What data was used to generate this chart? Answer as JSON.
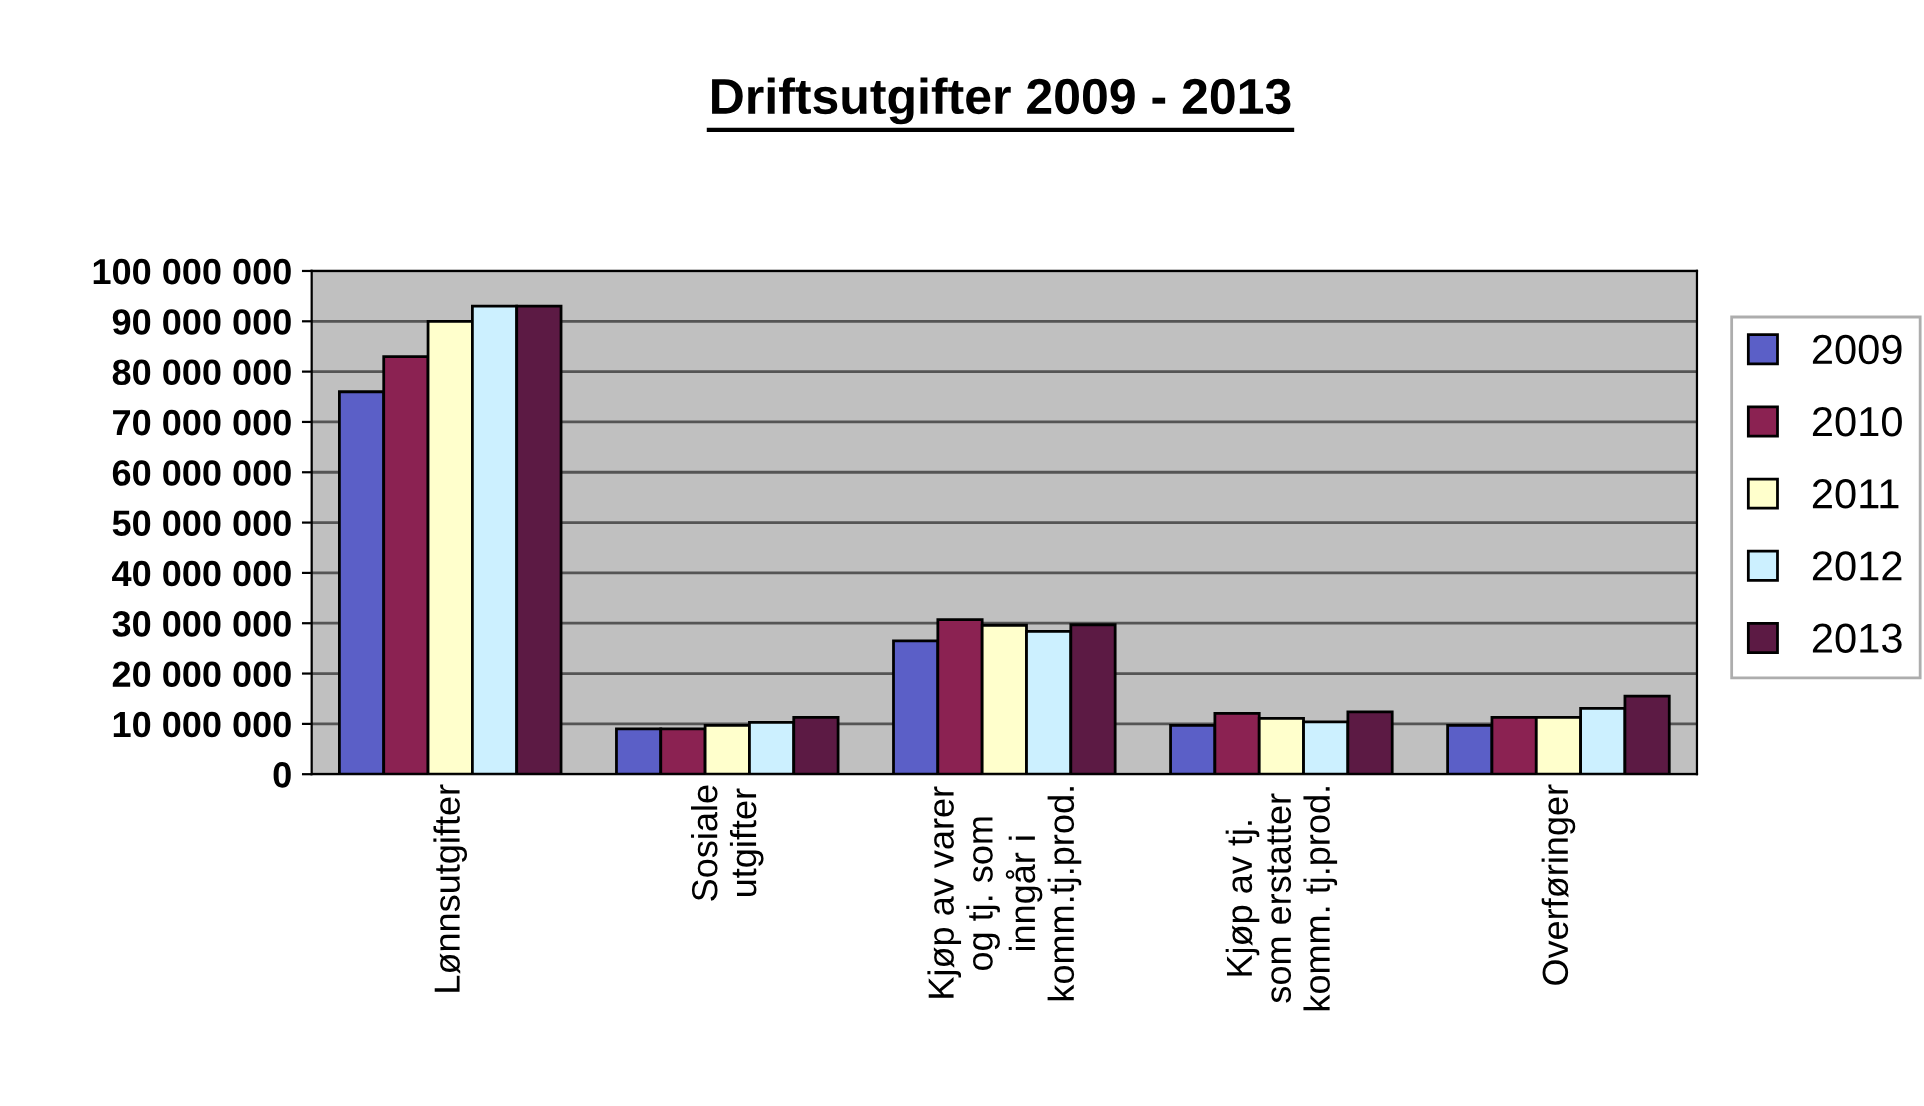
{
  "chart_data": {
    "type": "bar",
    "title": "Driftsutgifter 2009 - 2013",
    "categories": [
      "Lønnsutgifter",
      "Sosiale\nutgifter",
      "Kjøp av varer\nog tj. som\ninngår i\nkomm.tj.prod.",
      "Kjøp av tj.\nsom erstatter\nkomm. tj.prod.",
      "Overføringer"
    ],
    "series": [
      {
        "name": "2009",
        "color": "#5b5fc7",
        "values": [
          76000000,
          9000000,
          26500000,
          9700000,
          9700000
        ]
      },
      {
        "name": "2010",
        "color": "#8b2252",
        "values": [
          83000000,
          9000000,
          30700000,
          12100000,
          11300000
        ]
      },
      {
        "name": "2011",
        "color": "#ffffcc",
        "values": [
          90000000,
          9700000,
          29600000,
          11100000,
          11300000
        ]
      },
      {
        "name": "2012",
        "color": "#ccf0ff",
        "values": [
          93000000,
          10300000,
          28400000,
          10400000,
          13100000
        ]
      },
      {
        "name": "2013",
        "color": "#5c1a44",
        "values": [
          93000000,
          11300000,
          29700000,
          12400000,
          15500000
        ]
      }
    ],
    "ylim": [
      0,
      100000000
    ],
    "yticks": [
      {
        "value": 0,
        "label": "0"
      },
      {
        "value": 10000000,
        "label": "10 000 000"
      },
      {
        "value": 20000000,
        "label": "20 000 000"
      },
      {
        "value": 30000000,
        "label": "30 000 000"
      },
      {
        "value": 40000000,
        "label": "40 000 000"
      },
      {
        "value": 50000000,
        "label": "50 000 000"
      },
      {
        "value": 60000000,
        "label": "60 000 000"
      },
      {
        "value": 70000000,
        "label": "70 000 000"
      },
      {
        "value": 80000000,
        "label": "80 000 000"
      },
      {
        "value": 90000000,
        "label": "90 000 000"
      },
      {
        "value": 100000000,
        "label": "100 000 000"
      }
    ],
    "grid": "y",
    "legend": "right"
  }
}
